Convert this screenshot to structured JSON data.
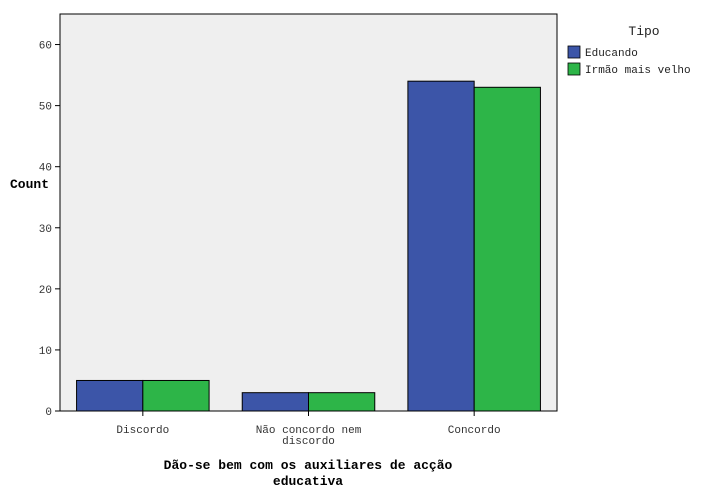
{
  "chart_data": {
    "type": "bar",
    "categories": [
      "Discordo",
      "Não concordo nem discordo",
      "Concordo"
    ],
    "category_label_lines": [
      [
        "Discordo"
      ],
      [
        "Não concordo nem",
        "discordo"
      ],
      [
        "Concordo"
      ]
    ],
    "series": [
      {
        "name": "Educando",
        "values": [
          5,
          3,
          54
        ],
        "color": "#3c55a8"
      },
      {
        "name": "Irmão mais velho",
        "values": [
          5,
          3,
          53
        ],
        "color": "#2db548"
      }
    ],
    "xlabel_lines": [
      "Dão-se bem com os auxiliares de acção",
      "educativa"
    ],
    "ylabel": "Count",
    "legend_title": "Tipo",
    "legend_position": "right",
    "ylim": [
      0,
      65
    ],
    "yticks": [
      0,
      10,
      20,
      30,
      40,
      50,
      60
    ],
    "grid": false,
    "plot_background": "#efefef"
  }
}
